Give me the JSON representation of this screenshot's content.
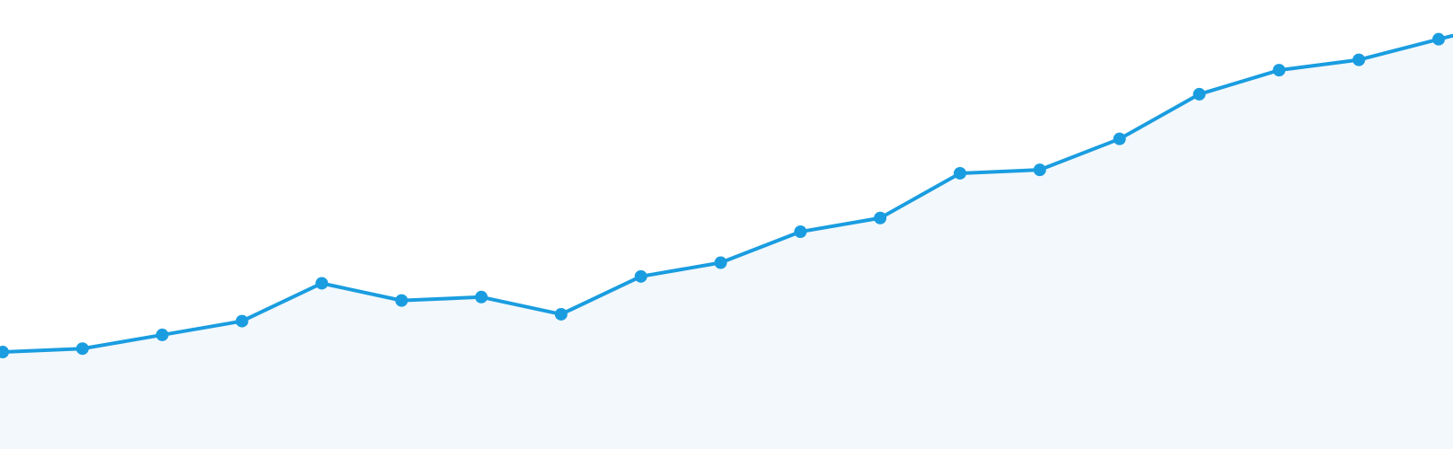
{
  "chart_data": {
    "type": "area",
    "title": "",
    "xlabel": "",
    "ylabel": "",
    "grid": false,
    "legend": "none",
    "x": [
      0,
      1,
      2,
      3,
      4,
      5,
      6,
      7,
      8,
      9,
      10,
      11,
      12,
      13,
      14,
      15,
      16,
      17,
      18
    ],
    "series": [
      {
        "values": [
          12,
          13,
          17,
          21,
          32,
          27,
          28,
          23,
          34,
          38,
          47,
          51,
          64,
          65,
          74,
          87,
          94,
          97,
          103
        ],
        "color": "#1a9de0"
      }
    ],
    "ylim": [
      0,
      105
    ],
    "colors": {
      "line": "#1a9de0",
      "point": "#1a9de0",
      "area": "#f3f8fc",
      "background": "#ffffff"
    }
  }
}
